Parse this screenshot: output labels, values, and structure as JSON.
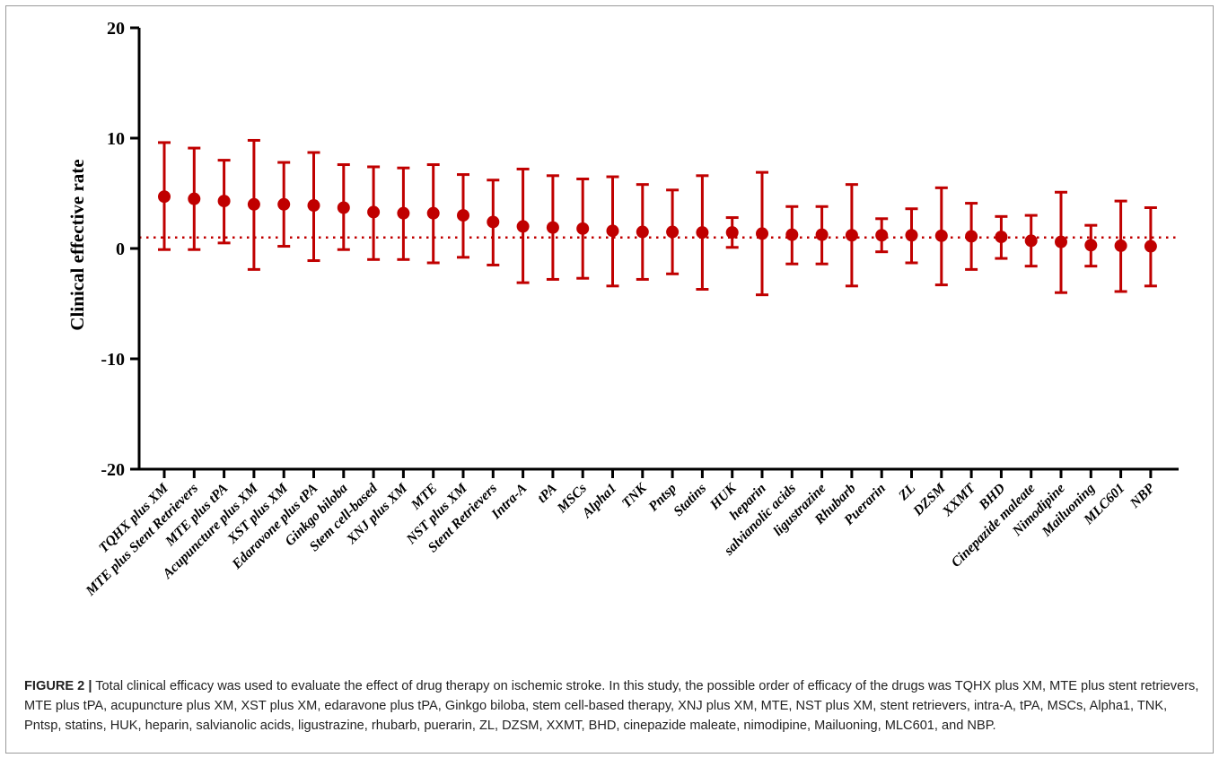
{
  "chart_data": {
    "type": "scatter",
    "ylabel": "Clinical effective rate",
    "xlabel": "",
    "ylim": [
      -20,
      20
    ],
    "yticks": [
      -20,
      -10,
      0,
      10,
      20
    ],
    "reference_line": 1,
    "colors": {
      "points": "#c00000",
      "reference": "#c00000",
      "axis": "#000000"
    },
    "categories": [
      "TQHX plus XM",
      "MTE plus Stent Retrievers",
      "MTE plus tPA",
      "Acupuncture plus XM",
      "XST plus XM",
      "Edaravone plus tPA",
      "Ginkgo biloba",
      "Stem cell-based",
      "XNJ plus XM",
      "MTE",
      "NST plus XM",
      "Stent Retrievers",
      "Intra-A",
      "tPA",
      "MSCs",
      "Alpha1",
      "TNK",
      "Pntsp",
      "Statins",
      "HUK",
      "heparin",
      "salvianolic acids",
      "ligustrazine",
      "Rhubarb",
      "Puerarin",
      "ZL",
      "DZSM",
      "XXMT",
      "BHD",
      "Cinepazide maleate",
      "Nimodipine",
      "Mailuoning",
      "MLC601",
      "NBP"
    ],
    "values": [
      4.7,
      4.5,
      4.3,
      4.0,
      4.0,
      3.9,
      3.7,
      3.3,
      3.2,
      3.2,
      3.0,
      2.4,
      2.0,
      1.9,
      1.8,
      1.6,
      1.5,
      1.5,
      1.45,
      1.45,
      1.35,
      1.25,
      1.25,
      1.2,
      1.2,
      1.2,
      1.15,
      1.1,
      1.05,
      0.7,
      0.6,
      0.3,
      0.25,
      0.2
    ],
    "lower": [
      -0.1,
      -0.1,
      0.5,
      -1.9,
      0.2,
      -1.1,
      -0.1,
      -1.0,
      -1.0,
      -1.3,
      -0.8,
      -1.5,
      -3.1,
      -2.8,
      -2.7,
      -3.4,
      -2.8,
      -2.3,
      -3.7,
      0.1,
      -4.2,
      -1.4,
      -1.4,
      -3.4,
      -0.3,
      -1.3,
      -3.3,
      -1.9,
      -0.9,
      -1.6,
      -4.0,
      -1.6,
      -3.9,
      -3.4
    ],
    "upper": [
      9.6,
      9.1,
      8.0,
      9.8,
      7.8,
      8.7,
      7.6,
      7.4,
      7.3,
      7.6,
      6.7,
      6.2,
      7.2,
      6.6,
      6.3,
      6.5,
      5.8,
      5.3,
      6.6,
      2.8,
      6.9,
      3.8,
      3.8,
      5.8,
      2.7,
      3.6,
      5.5,
      4.1,
      2.9,
      3.0,
      5.1,
      2.1,
      4.3,
      3.7
    ]
  },
  "caption": {
    "label": "FIGURE 2 |",
    "text": " Total clinical efficacy was used to evaluate the effect of drug therapy on ischemic stroke. In this study, the possible order of efficacy of the drugs was TQHX plus XM, MTE plus stent retrievers, MTE plus tPA, acupuncture plus XM, XST plus XM, edaravone plus tPA, Ginkgo biloba, stem cell-based therapy, XNJ plus XM, MTE, NST plus XM, stent retrievers, intra-A, tPA, MSCs, Alpha1, TNK, Pntsp, statins, HUK, heparin, salvianolic acids, ligustrazine, rhubarb, puerarin, ZL, DZSM, XXMT, BHD, cinepazide maleate, nimodipine, Mailuoning, MLC601, and NBP."
  }
}
